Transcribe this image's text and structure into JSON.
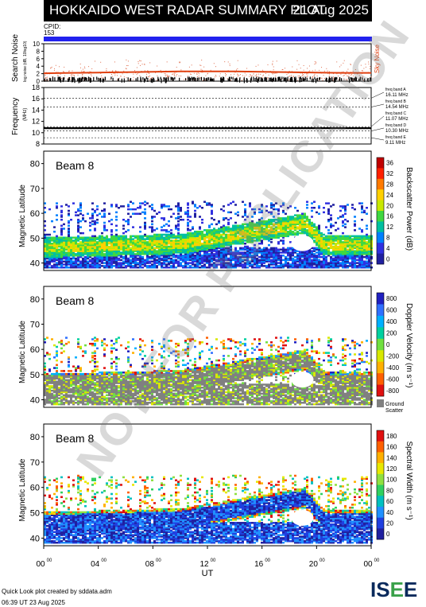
{
  "title": "HOKKAIDO WEST RADAR SUMMARY PLOT",
  "date": "21 Aug 2025",
  "cpid_label": "CPID:",
  "cpid_value": "153",
  "colors": {
    "cpid_bar": "#2222ee",
    "noise_series": "#e04010",
    "ground_scatter": "#808080"
  },
  "chart_data": [
    {
      "type": "scatter",
      "ylabel": "Search Noise",
      "ylabel_small": "log noise (dB, 10log10)",
      "right_label": "Sky Noise",
      "ylim": [
        0,
        10
      ],
      "yticks": [
        0,
        2,
        4,
        6,
        8,
        10
      ],
      "x": [
        0,
        2,
        4,
        6,
        8,
        10,
        12,
        14,
        16,
        18,
        20,
        22,
        24
      ],
      "series": [
        {
          "name": "Sky Noise",
          "values": [
            2.1,
            2.2,
            2.3,
            2.4,
            2.5,
            2.6,
            2.6,
            2.6,
            2.5,
            2.4,
            2.3,
            2.2,
            2.2
          ]
        }
      ]
    },
    {
      "type": "line",
      "ylabel": "Frequency",
      "ylabel_small": "(MHz)",
      "ylim": [
        8,
        18
      ],
      "yticks": [
        8,
        10,
        12,
        14,
        16,
        18
      ],
      "bands": [
        {
          "name": "freq band A",
          "mhz": "16.11 MHz",
          "value": 16.11
        },
        {
          "name": "freq band B",
          "mhz": "14.54 MHz",
          "value": 14.54
        },
        {
          "name": "freq band C",
          "mhz": "11.07 MHz",
          "value": 11.07
        },
        {
          "name": "freq band D",
          "mhz": "10.30 MHz",
          "value": 10.3
        },
        {
          "name": "freq band E",
          "mhz": "9.11 MHz",
          "value": 9.11
        }
      ],
      "operating_value": 10.8
    },
    {
      "type": "heatmap",
      "beam_label": "Beam  8",
      "ylabel": "Magnetic Latitude",
      "ylim": [
        37,
        85
      ],
      "yticks": [
        40,
        50,
        60,
        70,
        80
      ],
      "colorbar_label": "Backscatter Power (dB)",
      "colorbar_ticks": [
        "36",
        "32",
        "28",
        "24",
        "20",
        "16",
        "12",
        "8",
        "4",
        "0"
      ]
    },
    {
      "type": "heatmap",
      "beam_label": "Beam  8",
      "ylabel": "Magnetic Latitude",
      "ylim": [
        37,
        85
      ],
      "yticks": [
        40,
        50,
        60,
        70,
        80
      ],
      "colorbar_label": "Doppler Velocity (m s⁻¹)",
      "colorbar_ticks": [
        "800",
        "600",
        "400",
        "200",
        "0",
        "-200",
        "-400",
        "-600",
        "-800"
      ],
      "ground_label_1": "Ground",
      "ground_label_2": "Scatter"
    },
    {
      "type": "heatmap",
      "beam_label": "Beam  8",
      "ylabel": "Magnetic Latitude",
      "ylim": [
        37,
        85
      ],
      "yticks": [
        40,
        50,
        60,
        70,
        80
      ],
      "colorbar_label": "Spectral Width (m s⁻¹)",
      "colorbar_ticks": [
        "180",
        "160",
        "140",
        "120",
        "100",
        "80",
        "60",
        "40",
        "20",
        "0"
      ]
    }
  ],
  "x_axis": {
    "label": "UT",
    "ticks": [
      "00",
      "04",
      "08",
      "12",
      "16",
      "20",
      "00"
    ],
    "tick_sup": "00"
  },
  "watermark": "NOT FOR PUBLICATION",
  "footer_line1": "Quick Look plot created by sddata.adm",
  "footer_line2": "06:39 UT 23 Aug 2025",
  "logo": {
    "text_a": "IS",
    "text_b": "E",
    "text_c": "E"
  }
}
